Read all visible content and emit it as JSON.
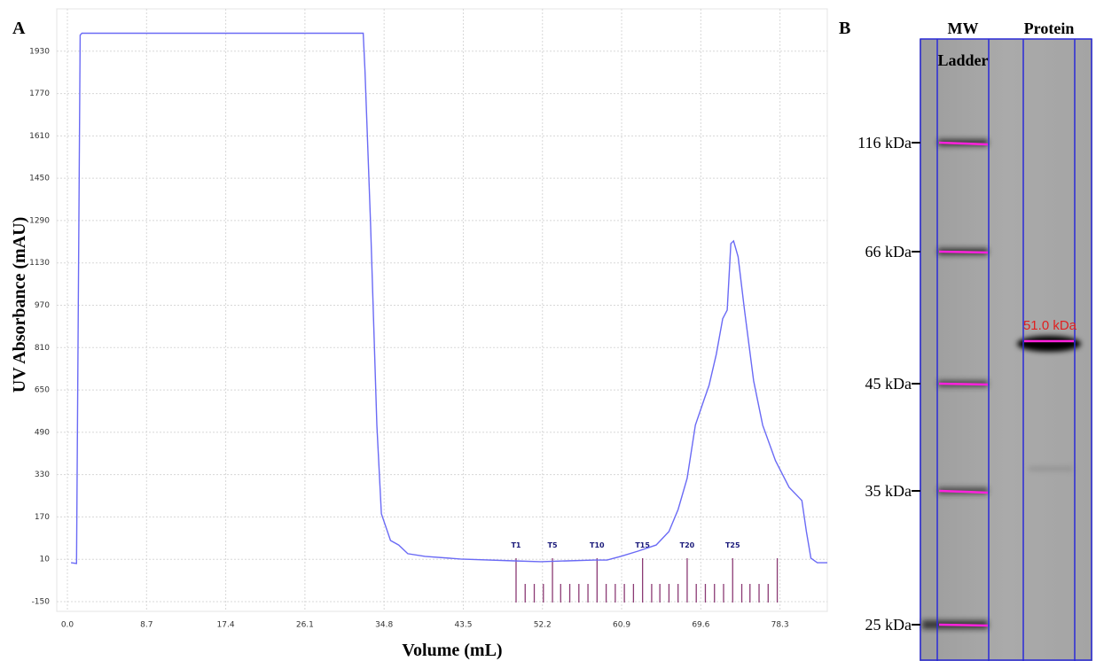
{
  "chart_data": {
    "type": "line",
    "panel_label": "A",
    "xlabel": "Volume (mL)",
    "ylabel": "UV Absorbance (mAU)",
    "x": [
      0.4,
      1.0,
      1.4,
      1.6,
      32.5,
      32.7,
      33.3,
      34.0,
      34.5,
      35.5,
      36.4,
      37.4,
      39.3,
      43.2,
      49.1,
      52.0,
      54.9,
      57.9,
      59.3,
      60.8,
      62.7,
      64.7,
      66.1,
      67.1,
      68.1,
      69.0,
      70.0,
      70.5,
      71.3,
      72.0,
      72.5,
      72.9,
      73.2,
      73.7,
      74.4,
      75.4,
      76.4,
      77.8,
      79.3,
      80.7,
      81.2,
      81.7,
      82.4,
      83.5
    ],
    "series": [
      {
        "color": "#6a6af5",
        "values": [
          -3,
          -6,
          1991,
          1998,
          1998,
          1857,
          1287,
          517,
          182,
          81,
          64,
          31,
          21,
          11,
          4,
          1,
          4,
          7,
          7,
          21,
          41,
          64,
          115,
          198,
          316,
          517,
          617,
          667,
          785,
          919,
          952,
          1203,
          1213,
          1153,
          952,
          684,
          517,
          383,
          282,
          232,
          115,
          14,
          -3,
          -3
        ]
      }
    ],
    "xlim": [
      0,
      83.5
    ],
    "ylim": [
      -150,
      2090
    ],
    "xticks": [
      {
        "value": 0,
        "label": "0.0"
      },
      8.7,
      17.4,
      26.1,
      34.8,
      43.5,
      52.2,
      60.9,
      69.6,
      78.3
    ],
    "yticks": [
      -150,
      10,
      170,
      330,
      490,
      650,
      810,
      970,
      1130,
      1290,
      1450,
      1610,
      1770,
      1930
    ],
    "grid": true,
    "fractions": {
      "color": "#8b3a74",
      "x": [
        49.3,
        50.3,
        51.3,
        52.3,
        53.3,
        54.2,
        55.2,
        56.2,
        57.2,
        58.2,
        59.2,
        60.2,
        61.2,
        62.2,
        63.2,
        64.2,
        65.1,
        66.1,
        67.1,
        68.1,
        69.1,
        70.1,
        71.1,
        72.1,
        73.1,
        74.1,
        75.0,
        76.0,
        77.0,
        78.0
      ],
      "labels": [
        "T1",
        null,
        null,
        null,
        "T5",
        null,
        null,
        null,
        null,
        "T10",
        null,
        null,
        null,
        null,
        "T15",
        null,
        null,
        null,
        null,
        "T20",
        null,
        null,
        null,
        null,
        "T25",
        null,
        null,
        null,
        null,
        null
      ]
    }
  },
  "gel": {
    "panel_label": "B",
    "ladder_label": [
      "MW",
      "Ladder"
    ],
    "sample_label": "Protein",
    "markers": [
      "116 kDa",
      "66 kDa",
      "45 kDa",
      "35 kDa",
      "25 kDa"
    ],
    "band_label": "51.0 kDa"
  }
}
